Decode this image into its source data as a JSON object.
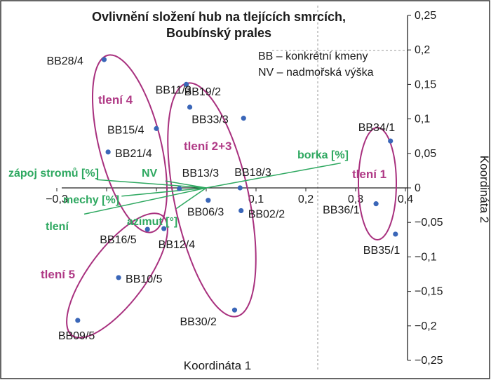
{
  "chart_data": {
    "type": "scatter",
    "title": [
      "Ovlivnění složení hub na tlejících smrcích,",
      "Boubínský prales"
    ],
    "xlabel": "Koordináta 1",
    "ylabel": "Koordináta 2",
    "xlim": [
      -0.35,
      0.43
    ],
    "ylim": [
      -0.25,
      0.25
    ],
    "xticks": [
      -0.3,
      -0.2,
      -0.1,
      0,
      0.1,
      0.2,
      0.3,
      0.4
    ],
    "yticks": [
      0.25,
      0.2,
      0.15,
      0.1,
      0.05,
      0,
      -0.05,
      -0.1,
      -0.15,
      -0.2,
      -0.25
    ],
    "xtick_labels": [
      "−0,3",
      "",
      "",
      "",
      "0,1",
      "0,2",
      "0,3",
      "0,4"
    ],
    "ytick_labels": [
      "0,25",
      "0,2",
      "0,15",
      "0,1",
      "0,05",
      "0",
      "−0,05",
      "−0,1",
      "−0,15",
      "−0,2",
      "−0,25"
    ],
    "legend": [
      "BB – konkrétní kmeny",
      "NV – nadmořská výška"
    ],
    "points": [
      {
        "label": "BB28/4",
        "x": -0.205,
        "y": 0.186
      },
      {
        "label": "BB11/3",
        "x": -0.04,
        "y": 0.15
      },
      {
        "label": "BB19/2",
        "x": -0.033,
        "y": 0.117
      },
      {
        "label": "BB33/3",
        "x": 0.075,
        "y": 0.101
      },
      {
        "label": "BB15/4",
        "x": -0.1,
        "y": 0.086
      },
      {
        "label": "BB21/4",
        "x": -0.197,
        "y": 0.052
      },
      {
        "label": "BB34/1",
        "x": 0.37,
        "y": 0.068
      },
      {
        "label": "BB13/3",
        "x": -0.054,
        "y": -0.001
      },
      {
        "label": "BB18/3",
        "x": 0.068,
        "y": 0.0
      },
      {
        "label": "BB06/3",
        "x": 0.004,
        "y": -0.018
      },
      {
        "label": "BB02/2",
        "x": 0.07,
        "y": -0.033
      },
      {
        "label": "BB36/1",
        "x": 0.341,
        "y": -0.023
      },
      {
        "label": "BB35/1",
        "x": 0.38,
        "y": -0.067
      },
      {
        "label": "BB16/5",
        "x": -0.118,
        "y": -0.06
      },
      {
        "label": "BB12/4",
        "x": -0.085,
        "y": -0.059
      },
      {
        "label": "BB10/5",
        "x": -0.176,
        "y": -0.13
      },
      {
        "label": "BB30/2",
        "x": 0.057,
        "y": -0.177
      },
      {
        "label": "BB09/5",
        "x": -0.258,
        "y": -0.192
      }
    ],
    "groups": [
      "tlení 1",
      "tlení 2+3",
      "tlení 4",
      "tlení 5"
    ],
    "env_vectors": [
      {
        "label": "borka [%]",
        "x": 0.27,
        "y": 0.036
      },
      {
        "label": "zápoj stromů [%]",
        "x": -0.22,
        "y": 0.012
      },
      {
        "label": "NV",
        "x": -0.082,
        "y": 0.01
      },
      {
        "label": "mechy [%]",
        "x": -0.17,
        "y": -0.012
      },
      {
        "label": "tlení",
        "x": -0.245,
        "y": -0.038
      },
      {
        "label": "azimut [°]",
        "x": -0.06,
        "y": -0.03
      }
    ]
  }
}
